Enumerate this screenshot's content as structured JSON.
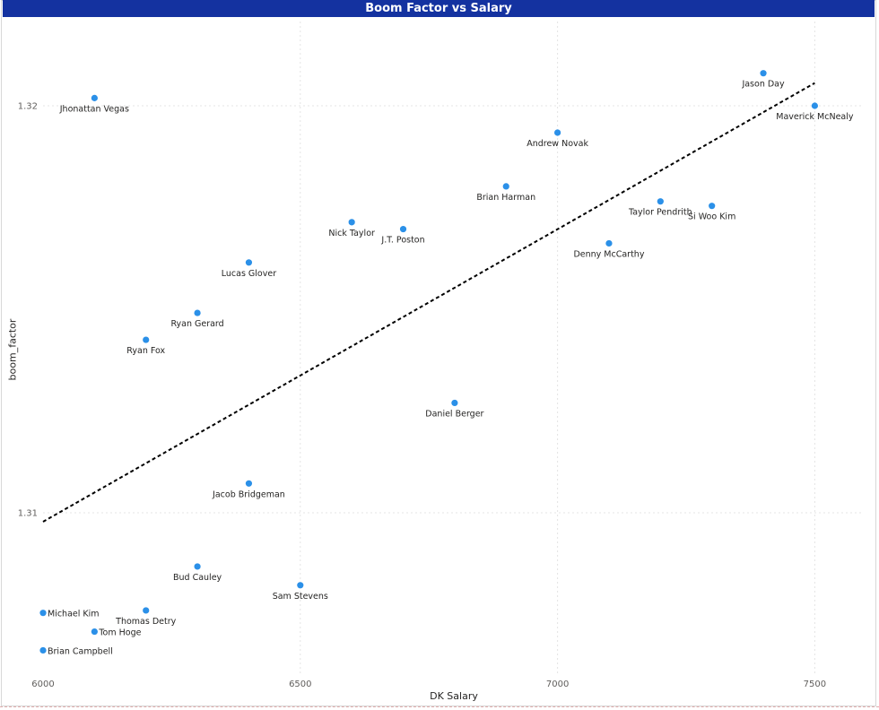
{
  "title": "Boom Factor vs Salary",
  "chart_data": {
    "type": "scatter",
    "title": "Boom Factor vs Salary",
    "xlabel": "DK Salary",
    "ylabel": "boom_factor",
    "xlim": [
      6000,
      7600
    ],
    "x_ticks": [
      "6000",
      "6500",
      "7000",
      "7500"
    ],
    "y_ticks": [
      "1.31",
      "1.32"
    ],
    "grid": true,
    "point_color": "#2b90e8",
    "trendline": {
      "style": "dashed",
      "color": "#000000",
      "x": [
        6000,
        7500
      ],
      "y": [
        1.30978,
        1.32056
      ]
    },
    "points": [
      {
        "name": "Jhonattan Vegas",
        "x": 6100,
        "y": 1.32019
      },
      {
        "name": "Jason Day",
        "x": 7400,
        "y": 1.3208
      },
      {
        "name": "Maverick McNealy",
        "x": 7500,
        "y": 1.32
      },
      {
        "name": "Andrew Novak",
        "x": 7000,
        "y": 1.31934
      },
      {
        "name": "Brian Harman",
        "x": 6900,
        "y": 1.31802
      },
      {
        "name": "Taylor Pendrith",
        "x": 7200,
        "y": 1.31765
      },
      {
        "name": "Si Woo Kim",
        "x": 7300,
        "y": 1.31754
      },
      {
        "name": "Nick Taylor",
        "x": 6600,
        "y": 1.31714
      },
      {
        "name": "J.T. Poston",
        "x": 6700,
        "y": 1.31697
      },
      {
        "name": "Denny McCarthy",
        "x": 7100,
        "y": 1.31662
      },
      {
        "name": "Lucas Glover",
        "x": 6400,
        "y": 1.31615
      },
      {
        "name": "Ryan Gerard",
        "x": 6300,
        "y": 1.31491
      },
      {
        "name": "Ryan Fox",
        "x": 6200,
        "y": 1.31425
      },
      {
        "name": "Daniel Berger",
        "x": 6800,
        "y": 1.3127
      },
      {
        "name": "Jacob Bridgeman",
        "x": 6400,
        "y": 1.31072
      },
      {
        "name": "Bud Cauley",
        "x": 6300,
        "y": 1.30868
      },
      {
        "name": "Sam Stevens",
        "x": 6500,
        "y": 1.30822
      },
      {
        "name": "Thomas Detry",
        "x": 6200,
        "y": 1.3076
      },
      {
        "name": "Michael Kim",
        "x": 6000,
        "y": 1.30754
      },
      {
        "name": "Tom Hoge",
        "x": 6100,
        "y": 1.30708
      },
      {
        "name": "Brian Campbell",
        "x": 6000,
        "y": 1.30662
      }
    ]
  }
}
